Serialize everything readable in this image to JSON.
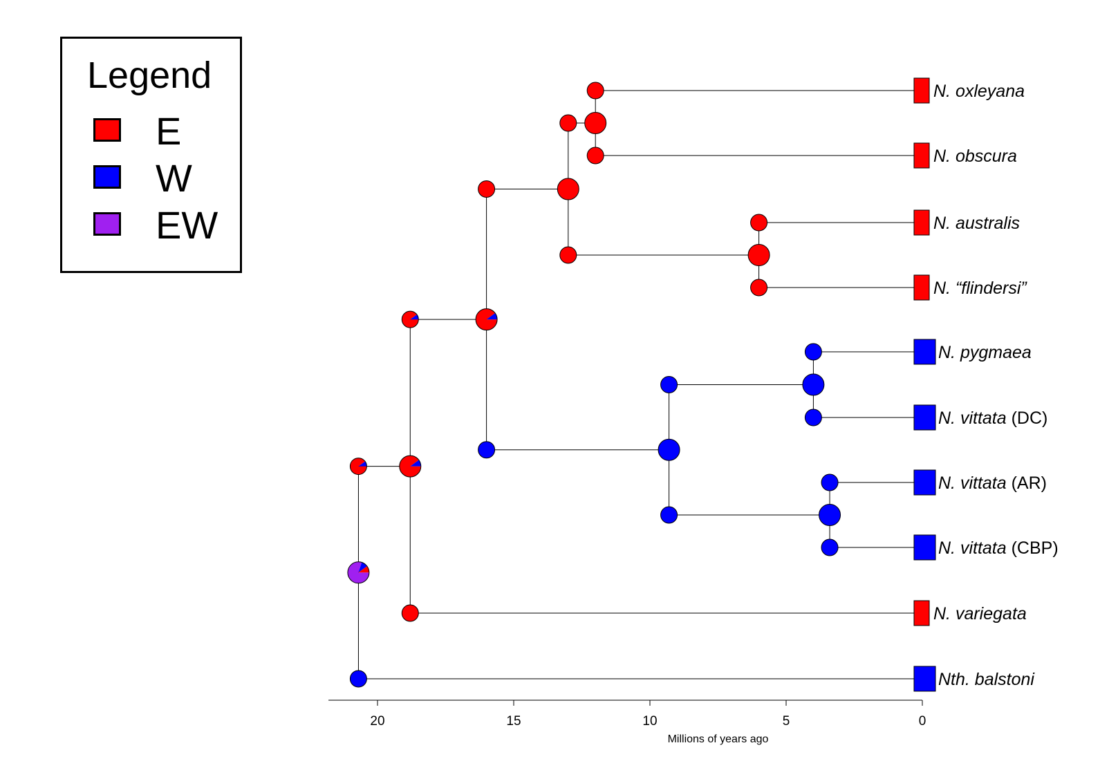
{
  "legend": {
    "title": "Legend",
    "items": [
      {
        "label": "E",
        "color": "#ff0000"
      },
      {
        "label": "W",
        "color": "#0000ff"
      },
      {
        "label": "EW",
        "color": "#a020f0"
      }
    ]
  },
  "axis": {
    "title": "Millions of years ago",
    "ticks": [
      "20",
      "15",
      "10",
      "5",
      "0"
    ]
  },
  "tips": [
    {
      "genus": "N.",
      "species": "oxleyana",
      "suffix": "",
      "state": "E"
    },
    {
      "genus": "N.",
      "species": "obscura",
      "suffix": "",
      "state": "E"
    },
    {
      "genus": "N.",
      "species": "australis",
      "suffix": "",
      "state": "E"
    },
    {
      "genus": "N.",
      "species": "“flindersi”",
      "suffix": "",
      "state": "E"
    },
    {
      "genus": "N.",
      "species": "pygmaea",
      "suffix": "",
      "state": "W"
    },
    {
      "genus": "N.",
      "species": "vittata",
      "suffix": "(DC)",
      "state": "W"
    },
    {
      "genus": "N.",
      "species": "vittata",
      "suffix": "(AR)",
      "state": "W"
    },
    {
      "genus": "N.",
      "species": "vittata",
      "suffix": "(CBP)",
      "state": "W"
    },
    {
      "genus": "N.",
      "species": "variegata",
      "suffix": "",
      "state": "E"
    },
    {
      "genus": "Nth.",
      "species": "balstoni",
      "suffix": "",
      "state": "W"
    }
  ],
  "chart_data": {
    "type": "phylogenetic-tree",
    "xlabel": "Millions of years ago",
    "xlim": [
      21.8,
      0
    ],
    "states": {
      "E": "#ff0000",
      "W": "#0000ff",
      "EW": "#a020f0"
    },
    "nodes": [
      {
        "id": "n_ox_ob",
        "age": 12.0,
        "children": [
          "oxleyana",
          "obscura"
        ],
        "pie": {
          "E": 1.0
        }
      },
      {
        "id": "n_au_fl",
        "age": 6.0,
        "children": [
          "australis",
          "flindersi"
        ],
        "pie": {
          "E": 1.0
        }
      },
      {
        "id": "n_east4",
        "age": 13.0,
        "children": [
          "n_ox_ob",
          "n_au_fl"
        ],
        "pie": {
          "E": 1.0
        }
      },
      {
        "id": "n_py_dc",
        "age": 4.0,
        "children": [
          "pygmaea",
          "vittata_DC"
        ],
        "pie": {
          "W": 1.0
        }
      },
      {
        "id": "n_ar_cbp",
        "age": 3.4,
        "children": [
          "vittata_AR",
          "vittata_CBP"
        ],
        "pie": {
          "W": 1.0
        }
      },
      {
        "id": "n_west4",
        "age": 9.3,
        "children": [
          "n_py_dc",
          "n_ar_cbp"
        ],
        "pie": {
          "W": 1.0
        }
      },
      {
        "id": "n_ew8",
        "age": 16.0,
        "children": [
          "n_east4",
          "n_west4"
        ],
        "pie": {
          "E": 0.9,
          "W": 0.1
        }
      },
      {
        "id": "n_core9",
        "age": 18.8,
        "children": [
          "n_ew8",
          "variegata"
        ],
        "pie": {
          "E": 0.9,
          "W": 0.1
        }
      },
      {
        "id": "root",
        "age": 20.7,
        "children": [
          "n_core9",
          "balstoni"
        ],
        "pie": {
          "EW": 0.8,
          "W": 0.1,
          "E": 0.1
        }
      }
    ],
    "edge_states": [
      {
        "child": "n_ox_ob",
        "pie": {
          "E": 1.0
        }
      },
      {
        "child": "n_au_fl",
        "pie": {
          "E": 1.0
        }
      },
      {
        "child": "n_east4",
        "pie": {
          "E": 1.0
        }
      },
      {
        "child": "n_west4",
        "pie": {
          "W": 1.0
        }
      },
      {
        "child": "n_ew8",
        "pie": {
          "E": 0.9,
          "W": 0.1
        }
      },
      {
        "child": "n_core9",
        "pie": {
          "E": 0.9,
          "W": 0.1
        }
      },
      {
        "child": "oxleyana",
        "pie": {
          "E": 1.0
        }
      },
      {
        "child": "obscura",
        "pie": {
          "E": 1.0
        }
      },
      {
        "child": "australis",
        "pie": {
          "E": 1.0
        }
      },
      {
        "child": "flindersi",
        "pie": {
          "E": 1.0
        }
      },
      {
        "child": "pygmaea",
        "pie": {
          "W": 1.0
        }
      },
      {
        "child": "vittata_DC",
        "pie": {
          "W": 1.0
        }
      },
      {
        "child": "vittata_AR",
        "pie": {
          "W": 1.0
        }
      },
      {
        "child": "vittata_CBP",
        "pie": {
          "W": 1.0
        }
      },
      {
        "child": "n_py_dc",
        "pie": {
          "W": 1.0
        }
      },
      {
        "child": "n_ar_cbp",
        "pie": {
          "W": 1.0
        }
      },
      {
        "child": "variegata",
        "pie": {
          "E": 1.0
        }
      },
      {
        "child": "balstoni",
        "pie": {
          "W": 1.0
        }
      }
    ]
  }
}
